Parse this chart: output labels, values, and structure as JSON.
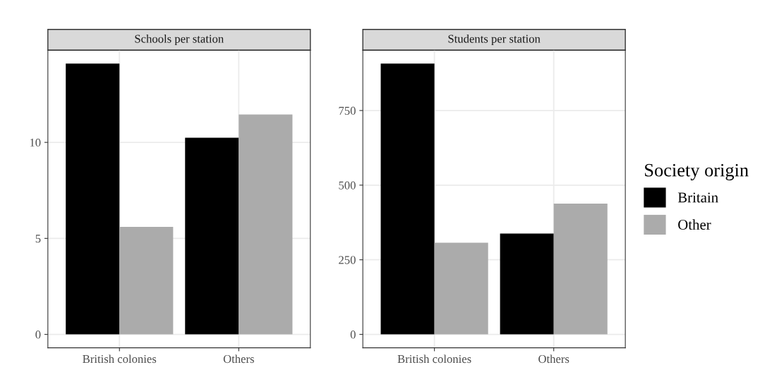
{
  "chart_data": [
    {
      "type": "bar",
      "title": "Schools per station",
      "categories": [
        "British colonies",
        "Others"
      ],
      "series": [
        {
          "color": "#000000",
          "values": [
            14.1,
            10.24
          ]
        },
        {
          "color": "#ababab",
          "values": [
            5.6,
            11.45
          ]
        }
      ],
      "ylim": [
        -0.7,
        14.8
      ],
      "yticks": [
        0,
        5,
        10
      ],
      "grid": true
    },
    {
      "type": "bar",
      "title": "Students per station",
      "categories": [
        "British colonies",
        "Others"
      ],
      "series": [
        {
          "name": "Britain",
          "color": "#000000",
          "values": [
            907,
            338
          ]
        },
        {
          "name": "Other",
          "color": "#ababab",
          "values": [
            307,
            438
          ]
        }
      ],
      "ylim": [
        -45,
        952
      ],
      "yticks": [
        0,
        250,
        500,
        750
      ],
      "grid": true,
      "legend": "right",
      "legend_title": "Society origin"
    }
  ]
}
